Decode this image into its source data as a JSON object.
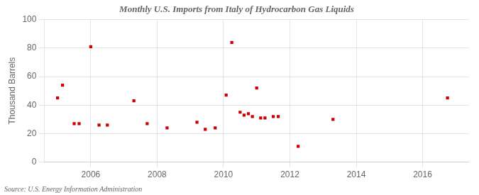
{
  "chart_data": {
    "type": "scatter",
    "title": "Monthly U.S. Imports from Italy of Hydrocarbon Gas Liquids",
    "ylabel": "Thousand Barrels",
    "annotation": "Source: U.S. Energy Information Administration",
    "x": [
      2005.0,
      2005.15,
      2005.5,
      2005.65,
      2006.0,
      2006.25,
      2006.5,
      2007.3,
      2007.7,
      2008.3,
      2009.2,
      2009.45,
      2009.75,
      2010.08,
      2010.25,
      2010.5,
      2010.62,
      2010.75,
      2010.87,
      2011.0,
      2011.12,
      2011.25,
      2011.5,
      2011.65,
      2012.25,
      2013.3,
      2016.75
    ],
    "values": [
      45,
      54,
      27,
      27,
      81,
      26,
      26,
      43,
      27,
      24,
      28,
      23,
      24,
      47,
      84,
      35,
      33,
      34,
      32,
      52,
      31,
      31,
      32,
      32,
      11,
      30,
      45
    ],
    "color": "#cc0000",
    "marker": "square",
    "xlim": [
      2004.6,
      2017.4
    ],
    "xticks": [
      2006,
      2008,
      2010,
      2012,
      2014,
      2016
    ],
    "ylim": [
      0,
      100
    ],
    "yticks": [
      0,
      20,
      40,
      60,
      80,
      100
    ],
    "grid": true
  }
}
